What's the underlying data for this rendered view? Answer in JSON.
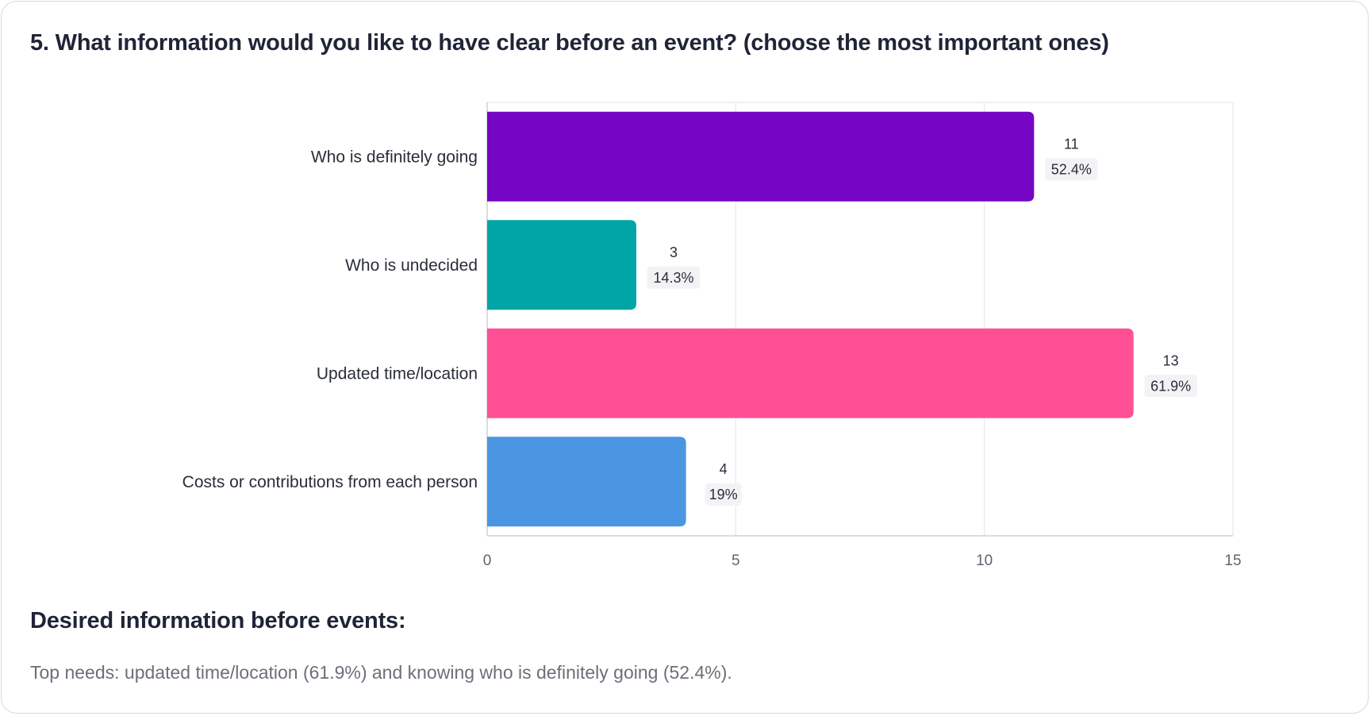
{
  "question_title": "5. What information would you like to have clear before an event? (choose the most important ones)",
  "chart_data": {
    "type": "bar",
    "orientation": "horizontal",
    "title": "5. What information would you like to have clear before an event? (choose the most important ones)",
    "categories": [
      "Who is definitely going",
      "Who is undecided",
      "Updated time/location",
      "Costs or contributions from each person"
    ],
    "values": [
      11,
      3,
      13,
      4
    ],
    "percent_labels": [
      "52.4%",
      "14.3%",
      "61.9%",
      "19%"
    ],
    "colors": [
      "#7506c4",
      "#00a5a5",
      "#ff5096",
      "#4b96e3"
    ],
    "xlim": [
      0,
      15
    ],
    "x_ticks": [
      0,
      5,
      10,
      15
    ],
    "grid": true,
    "xlabel": "",
    "ylabel": ""
  },
  "summary": {
    "heading": "Desired information before events:",
    "text": "Top needs: updated time/location (61.9%) and knowing who is definitely going (52.4%)."
  }
}
